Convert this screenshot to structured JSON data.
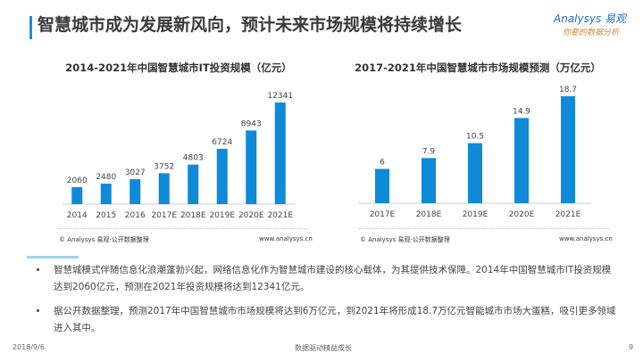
{
  "header": {
    "title": "智慧城市成为发展新风向，预计未来市场规模将持续增长",
    "logo_line1": "Analysys 易观",
    "logo_line2": "你要的数据分析"
  },
  "chart_data": [
    {
      "type": "bar",
      "title": "2014-2021年中国智慧城市IT投资规模（亿元）",
      "categories": [
        "2014",
        "2015",
        "2016",
        "2017E",
        "2018E",
        "2019E",
        "2020E",
        "2021E"
      ],
      "values": [
        2060,
        2480,
        3027,
        3752,
        4803,
        6724,
        8943,
        12341
      ],
      "color": "#0e8ad8",
      "source": "© Analysys 易观·公开数据整理",
      "url": "www.analysys.cn"
    },
    {
      "type": "bar",
      "title": "2017-2021年中国智慧城市市场规模预测（万亿元）",
      "categories": [
        "2017E",
        "2018E",
        "2019E",
        "2020E",
        "2021E"
      ],
      "values": [
        6,
        7.9,
        10.5,
        14.9,
        18.7
      ],
      "color": "#0e8ad8",
      "source": "© Analysys 易观·公开数据整理",
      "url": "www.analysys.cn"
    }
  ],
  "bullets": [
    "智慧城模式伴随信息化浪潮蓬勃兴起，网络信息化作为智慧城市建设的核心载体，为其提供技术保障。2014年中国智慧城市IT投资规模达到2060亿元，预测在2021年投资规模将达到12341亿元。",
    "据公开数据整理，预测2017年中国智慧城市市场规模将达到6万亿元，到2021年将形成18.7万亿元智能城市市场大蛋糕，吸引更多领域进入其中。"
  ],
  "footer": {
    "date": "2018/9/6",
    "slogan": "数据驱动精益成长",
    "page": "9"
  }
}
